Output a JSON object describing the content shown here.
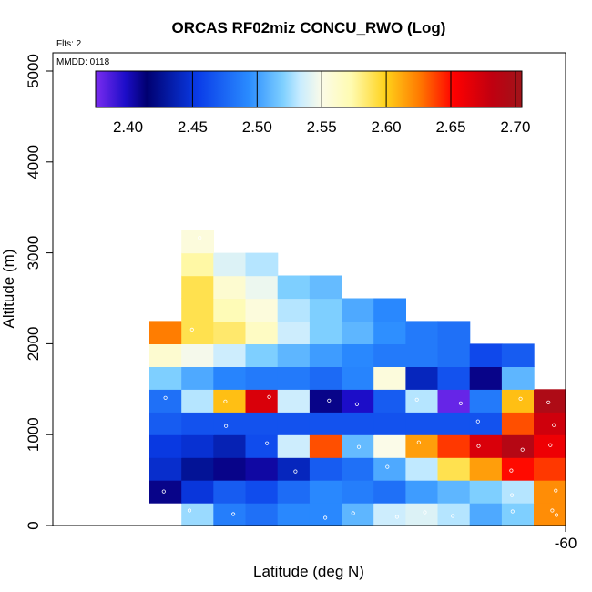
{
  "chart_data": {
    "type": "heatmap",
    "title": "ORCAS RF02miz CONCU_RWO (Log)",
    "xlabel": "Latitude (deg N)",
    "ylabel": "Altitude (m)",
    "flights_note": "Flts: 2",
    "date_note": "MMDD: 0118",
    "x_tick_labels": [
      "-60"
    ],
    "y_ticks": [
      0,
      1000,
      2000,
      3000,
      4000,
      5000
    ],
    "y_tick_labels": [
      "0",
      "1000",
      "2000",
      "3000",
      "4000",
      "5000"
    ],
    "ylim": [
      0,
      5200
    ],
    "colorbar": {
      "min": 2.375,
      "max": 2.705,
      "ticks": [
        2.4,
        2.45,
        2.5,
        2.55,
        2.6,
        2.65,
        2.7
      ],
      "tick_labels": [
        "2.40",
        "2.45",
        "2.50",
        "2.55",
        "2.60",
        "2.65",
        "2.70"
      ],
      "stops": [
        [
          0.0,
          "#7b2cf0"
        ],
        [
          0.07,
          "#1c0dc8"
        ],
        [
          0.12,
          "#000070"
        ],
        [
          0.24,
          "#0a3ce8"
        ],
        [
          0.36,
          "#2a8cff"
        ],
        [
          0.44,
          "#7fd0ff"
        ],
        [
          0.48,
          "#c8ecff"
        ],
        [
          0.53,
          "#fbfbe8"
        ],
        [
          0.6,
          "#fffbb0"
        ],
        [
          0.68,
          "#ffd21a"
        ],
        [
          0.76,
          "#ff7a00"
        ],
        [
          0.84,
          "#ff0000"
        ],
        [
          0.93,
          "#c00010"
        ],
        [
          1.0,
          "#a0141a"
        ]
      ]
    },
    "grid": {
      "col_count": 13,
      "row_height_m": 250,
      "cells": [
        [
          1,
          0,
          2.525
        ],
        [
          2,
          0,
          2.487
        ],
        [
          3,
          0,
          2.48
        ],
        [
          4,
          0,
          2.492
        ],
        [
          5,
          0,
          2.492
        ],
        [
          6,
          0,
          2.51
        ],
        [
          7,
          0,
          2.535
        ],
        [
          8,
          0,
          2.54
        ],
        [
          9,
          0,
          2.53
        ],
        [
          10,
          0,
          2.505
        ],
        [
          11,
          0,
          2.52
        ],
        [
          12,
          0,
          2.62
        ],
        [
          0,
          1,
          2.41
        ],
        [
          1,
          1,
          2.45
        ],
        [
          2,
          1,
          2.47
        ],
        [
          3,
          1,
          2.462
        ],
        [
          4,
          1,
          2.478
        ],
        [
          5,
          1,
          2.492
        ],
        [
          6,
          1,
          2.487
        ],
        [
          7,
          1,
          2.48
        ],
        [
          8,
          1,
          2.5
        ],
        [
          9,
          1,
          2.51
        ],
        [
          10,
          1,
          2.52
        ],
        [
          11,
          1,
          2.53
        ],
        [
          12,
          1,
          2.62
        ],
        [
          0,
          2,
          2.445
        ],
        [
          1,
          2,
          2.427
        ],
        [
          2,
          2,
          2.41
        ],
        [
          3,
          2,
          2.405
        ],
        [
          4,
          2,
          2.44
        ],
        [
          5,
          2,
          2.47
        ],
        [
          6,
          2,
          2.48
        ],
        [
          7,
          2,
          2.505
        ],
        [
          8,
          2,
          2.532
        ],
        [
          9,
          2,
          2.59
        ],
        [
          10,
          2,
          2.615
        ],
        [
          11,
          2,
          2.65
        ],
        [
          12,
          2,
          2.64
        ],
        [
          0,
          3,
          2.452
        ],
        [
          1,
          3,
          2.447
        ],
        [
          2,
          3,
          2.437
        ],
        [
          3,
          3,
          2.462
        ],
        [
          4,
          3,
          2.535
        ],
        [
          5,
          3,
          2.635
        ],
        [
          6,
          3,
          2.512
        ],
        [
          7,
          3,
          2.55
        ],
        [
          8,
          3,
          2.615
        ],
        [
          9,
          3,
          2.64
        ],
        [
          10,
          3,
          2.67
        ],
        [
          11,
          3,
          2.69
        ],
        [
          12,
          3,
          2.66
        ],
        [
          0,
          4,
          2.47
        ],
        [
          1,
          4,
          2.465
        ],
        [
          2,
          4,
          2.465
        ],
        [
          3,
          4,
          2.465
        ],
        [
          4,
          4,
          2.465
        ],
        [
          5,
          4,
          2.465
        ],
        [
          6,
          4,
          2.465
        ],
        [
          7,
          4,
          2.465
        ],
        [
          8,
          4,
          2.465
        ],
        [
          9,
          4,
          2.465
        ],
        [
          10,
          4,
          2.465
        ],
        [
          11,
          4,
          2.635
        ],
        [
          12,
          4,
          2.675
        ],
        [
          0,
          5,
          2.48
        ],
        [
          1,
          5,
          2.53
        ],
        [
          2,
          5,
          2.605
        ],
        [
          3,
          5,
          2.67
        ],
        [
          4,
          5,
          2.535
        ],
        [
          5,
          5,
          2.41
        ],
        [
          6,
          5,
          2.398
        ],
        [
          7,
          5,
          2.47
        ],
        [
          8,
          5,
          2.53
        ],
        [
          9,
          5,
          2.38
        ],
        [
          10,
          5,
          2.485
        ],
        [
          11,
          5,
          2.605
        ],
        [
          12,
          5,
          2.695
        ],
        [
          0,
          6,
          2.52
        ],
        [
          1,
          6,
          2.505
        ],
        [
          2,
          6,
          2.49
        ],
        [
          3,
          6,
          2.485
        ],
        [
          4,
          6,
          2.485
        ],
        [
          5,
          6,
          2.477
        ],
        [
          6,
          6,
          2.49
        ],
        [
          7,
          6,
          2.555
        ],
        [
          8,
          6,
          2.44
        ],
        [
          9,
          6,
          2.465
        ],
        [
          10,
          6,
          2.41
        ],
        [
          11,
          6,
          2.51
        ],
        [
          0,
          7,
          2.56
        ],
        [
          1,
          7,
          2.548
        ],
        [
          2,
          7,
          2.535
        ],
        [
          3,
          7,
          2.52
        ],
        [
          4,
          7,
          2.51
        ],
        [
          5,
          7,
          2.5
        ],
        [
          6,
          7,
          2.492
        ],
        [
          7,
          7,
          2.485
        ],
        [
          8,
          7,
          2.485
        ],
        [
          9,
          7,
          2.48
        ],
        [
          10,
          7,
          2.46
        ],
        [
          11,
          7,
          2.47
        ],
        [
          0,
          8,
          2.625
        ],
        [
          1,
          8,
          2.59
        ],
        [
          2,
          8,
          2.585
        ],
        [
          3,
          8,
          2.565
        ],
        [
          4,
          8,
          2.535
        ],
        [
          5,
          8,
          2.52
        ],
        [
          6,
          8,
          2.51
        ],
        [
          7,
          8,
          2.495
        ],
        [
          8,
          8,
          2.485
        ],
        [
          9,
          8,
          2.48
        ],
        [
          1,
          9,
          2.59
        ],
        [
          2,
          9,
          2.57
        ],
        [
          3,
          9,
          2.555
        ],
        [
          4,
          9,
          2.53
        ],
        [
          5,
          9,
          2.52
        ],
        [
          6,
          9,
          2.505
        ],
        [
          7,
          9,
          2.492
        ],
        [
          1,
          10,
          2.59
        ],
        [
          2,
          10,
          2.56
        ],
        [
          3,
          10,
          2.545
        ],
        [
          4,
          10,
          2.52
        ],
        [
          5,
          10,
          2.512
        ],
        [
          1,
          11,
          2.575
        ],
        [
          2,
          11,
          2.54
        ],
        [
          3,
          11,
          2.53
        ],
        [
          1,
          12,
          2.555
        ]
      ],
      "markers": [
        [
          1,
          0
        ],
        [
          2,
          0
        ],
        [
          5,
          0
        ],
        [
          6,
          0
        ],
        [
          7,
          0
        ],
        [
          8,
          0
        ],
        [
          9,
          0
        ],
        [
          11,
          0
        ],
        [
          12,
          0
        ],
        [
          12,
          0
        ],
        [
          0,
          1
        ],
        [
          11,
          1
        ],
        [
          12,
          1
        ],
        [
          4,
          2
        ],
        [
          7,
          2
        ],
        [
          11,
          2
        ],
        [
          3,
          3
        ],
        [
          6,
          3
        ],
        [
          8,
          3
        ],
        [
          10,
          3
        ],
        [
          11,
          3
        ],
        [
          12,
          3
        ],
        [
          2,
          4
        ],
        [
          10,
          4
        ],
        [
          12,
          4
        ],
        [
          0,
          5
        ],
        [
          2,
          5
        ],
        [
          3,
          5
        ],
        [
          5,
          5
        ],
        [
          6,
          5
        ],
        [
          8,
          5
        ],
        [
          9,
          5
        ],
        [
          11,
          5
        ],
        [
          12,
          5
        ],
        [
          1,
          8
        ],
        [
          11,
          8
        ],
        [
          1,
          12
        ]
      ]
    }
  }
}
